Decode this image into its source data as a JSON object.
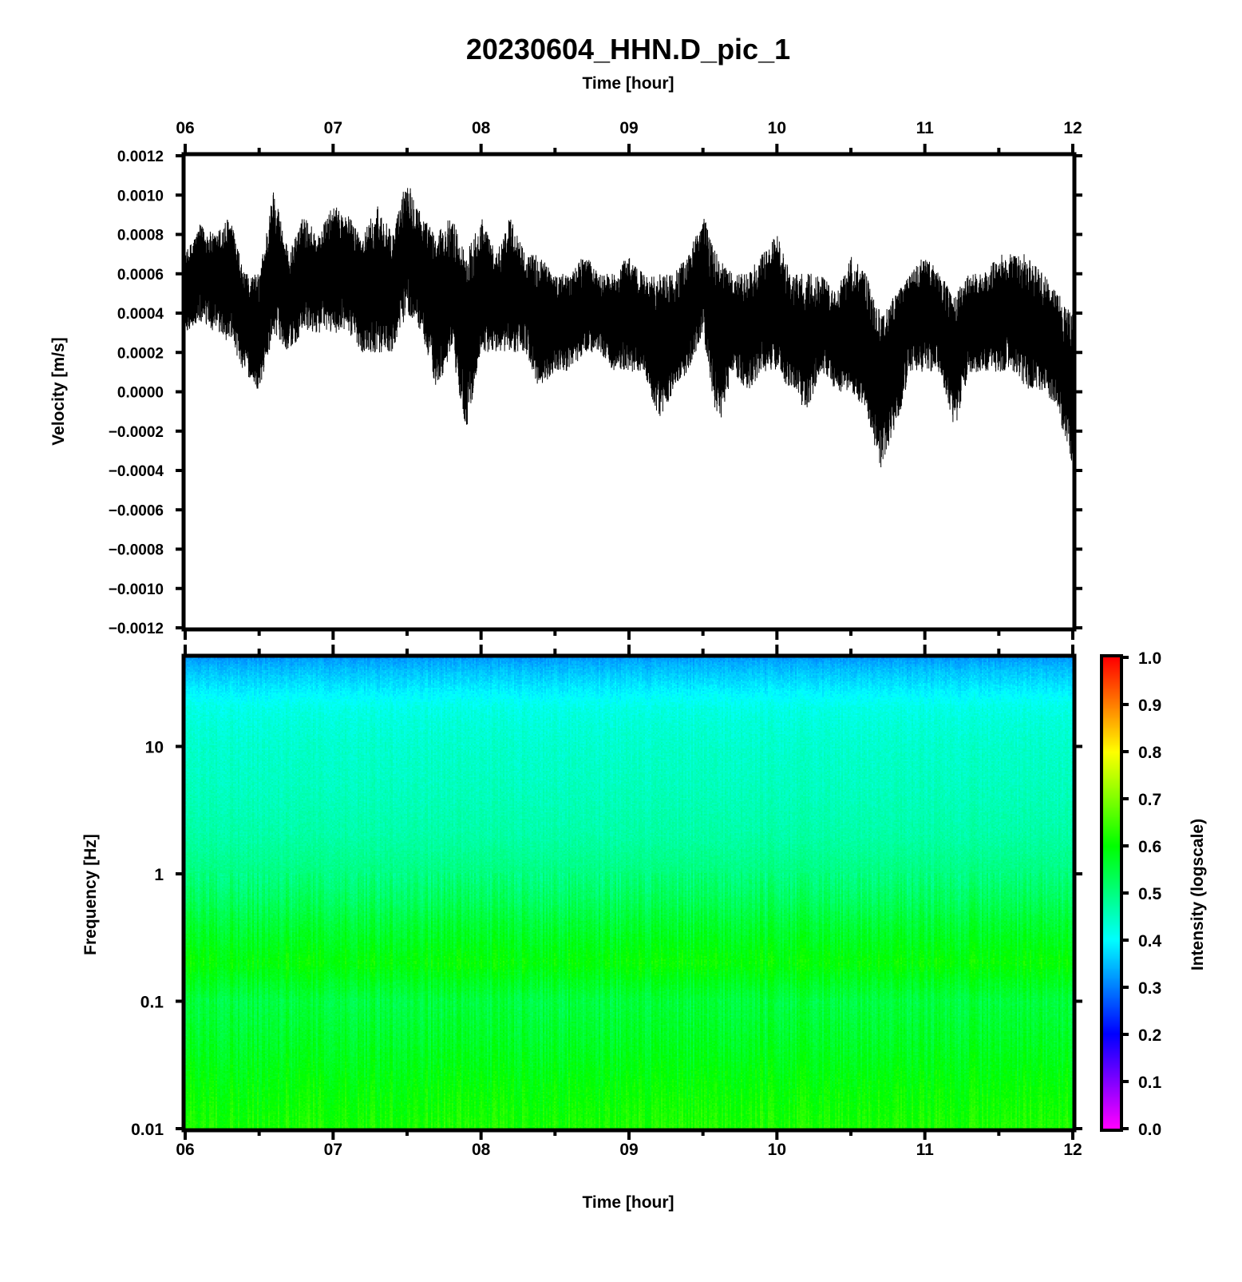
{
  "title": "20230604_HHN.D_pic_1",
  "chart_data": [
    {
      "type": "line",
      "name": "waveform",
      "xlabel": "Time [hour]",
      "ylabel": "Velocity [m/s]",
      "xlim": [
        "06:00",
        "12:00"
      ],
      "ylim": [
        -0.0012,
        0.0012
      ],
      "x_ticks": [
        "06",
        "07",
        "08",
        "09",
        "10",
        "11",
        "12"
      ],
      "y_ticks": [
        "0.0012",
        "0.0010",
        "0.0008",
        "0.0006",
        "0.0004",
        "0.0002",
        "0.0000",
        "−0.0002",
        "−0.0004",
        "−0.0006",
        "−0.0008",
        "−0.0010",
        "−0.0012"
      ],
      "line_color": "#000000",
      "envelope": {
        "time_hour": [
          6.0,
          6.1,
          6.2,
          6.3,
          6.4,
          6.5,
          6.6,
          6.7,
          6.8,
          6.9,
          7.0,
          7.1,
          7.2,
          7.3,
          7.4,
          7.5,
          7.6,
          7.7,
          7.8,
          7.9,
          8.0,
          8.1,
          8.2,
          8.3,
          8.4,
          8.5,
          8.6,
          8.7,
          8.8,
          8.9,
          9.0,
          9.1,
          9.2,
          9.3,
          9.4,
          9.5,
          9.6,
          9.7,
          9.8,
          9.9,
          10.0,
          10.1,
          10.2,
          10.3,
          10.4,
          10.5,
          10.6,
          10.7,
          10.8,
          10.9,
          11.0,
          11.1,
          11.2,
          11.3,
          11.4,
          11.5,
          11.6,
          11.7,
          11.8,
          11.9,
          12.0
        ],
        "upper": [
          0.0007,
          0.00085,
          0.0008,
          0.0009,
          0.0006,
          0.0006,
          0.00105,
          0.0007,
          0.0009,
          0.0008,
          0.00095,
          0.0009,
          0.0008,
          0.00095,
          0.0008,
          0.0011,
          0.0009,
          0.0008,
          0.0009,
          0.0007,
          0.0009,
          0.0007,
          0.0009,
          0.0007,
          0.0007,
          0.0006,
          0.0006,
          0.0007,
          0.0006,
          0.0006,
          0.0007,
          0.0006,
          0.0006,
          0.0006,
          0.0007,
          0.0009,
          0.0007,
          0.0006,
          0.0006,
          0.0007,
          0.0008,
          0.0006,
          0.0006,
          0.0006,
          0.0005,
          0.0007,
          0.0006,
          0.0004,
          0.0005,
          0.0006,
          0.0007,
          0.0006,
          0.0005,
          0.0006,
          0.0006,
          0.0007,
          0.0007,
          0.0007,
          0.0006,
          0.0005,
          0.0004
        ],
        "lower": [
          0.0003,
          0.00035,
          0.0003,
          0.00025,
          0.0001,
          0.0,
          0.0003,
          0.0002,
          0.0003,
          0.0003,
          0.0003,
          0.0003,
          0.0002,
          0.0002,
          0.0002,
          0.0004,
          0.0003,
          0.0,
          0.0002,
          -0.0002,
          0.0002,
          0.0002,
          0.0002,
          0.0002,
          0.0,
          0.0001,
          0.0001,
          0.0002,
          0.0002,
          0.0001,
          0.0001,
          0.0001,
          -0.00015,
          0.0,
          0.0001,
          0.0003,
          -0.0002,
          0.0001,
          0.0,
          0.0001,
          0.0001,
          0.0,
          -0.0001,
          0.0001,
          0.0,
          0.0,
          -0.0001,
          -0.0004,
          -0.0002,
          0.0001,
          0.0001,
          0.0001,
          -0.0002,
          0.0001,
          0.0001,
          0.0001,
          0.0001,
          0.0,
          0.0,
          -0.0001,
          -0.0004
        ]
      }
    },
    {
      "type": "heatmap",
      "name": "spectrogram",
      "xlabel": "Time [hour]",
      "ylabel": "Frequency [Hz]",
      "xlim": [
        "06:00",
        "12:00"
      ],
      "ylim": [
        0.01,
        50
      ],
      "y_scale": "log",
      "x_ticks": [
        "06",
        "07",
        "08",
        "09",
        "10",
        "11",
        "12"
      ],
      "y_ticks": [
        "10",
        "1",
        "0.1",
        "0.01"
      ],
      "colormap": [
        "#ff00ff",
        "#0000ff",
        "#00ffff",
        "#00ff00",
        "#ffff00",
        "#ff0000"
      ],
      "intensity_profile": {
        "frequency_hz": [
          50,
          40,
          30,
          20,
          15,
          10,
          5,
          2,
          1,
          0.6,
          0.4,
          0.2,
          0.1,
          0.05,
          0.02,
          0.01
        ],
        "intensity": [
          0.32,
          0.35,
          0.38,
          0.42,
          0.43,
          0.44,
          0.45,
          0.47,
          0.5,
          0.53,
          0.56,
          0.6,
          0.55,
          0.57,
          0.6,
          0.62
        ]
      },
      "colorbar": {
        "label": "Intensity (logscale)",
        "range": [
          0.0,
          1.0
        ],
        "ticks": [
          "1.0",
          "0.9",
          "0.8",
          "0.7",
          "0.6",
          "0.5",
          "0.4",
          "0.3",
          "0.2",
          "0.1",
          "0.0"
        ]
      }
    }
  ]
}
